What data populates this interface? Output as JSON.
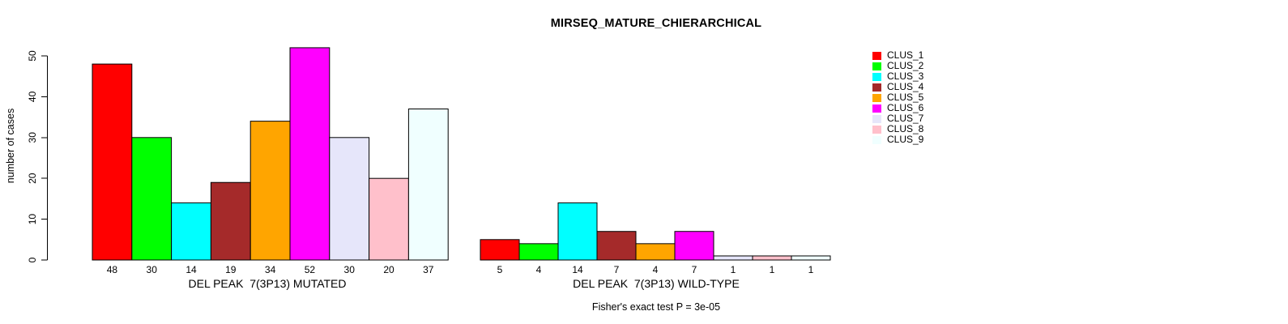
{
  "chart_data": {
    "type": "bar",
    "title": "MIRSEQ_MATURE_CHIERARCHICAL",
    "ylabel": "number of cases",
    "ylim": [
      0,
      52
    ],
    "yticks": [
      0,
      10,
      20,
      30,
      40,
      50
    ],
    "grid": false,
    "legend_position": "right",
    "clusters": [
      "CLUS_1",
      "CLUS_2",
      "CLUS_3",
      "CLUS_4",
      "CLUS_5",
      "CLUS_6",
      "CLUS_7",
      "CLUS_8",
      "CLUS_9"
    ],
    "colors": [
      "#FF0000",
      "#00FF00",
      "#00FFFF",
      "#A52A2A",
      "#FFA500",
      "#FF00FF",
      "#E6E6FA",
      "#FFC0CB",
      "#F0FFFF"
    ],
    "groups": [
      {
        "xlabel": "DEL PEAK  7(3P13) MUTATED",
        "categories": [
          "CLUS_1",
          "CLUS_2",
          "CLUS_3",
          "CLUS_4",
          "CLUS_5",
          "CLUS_6",
          "CLUS_7",
          "CLUS_8",
          "CLUS_9"
        ],
        "values": [
          48,
          30,
          14,
          19,
          34,
          52,
          30,
          20,
          37
        ]
      },
      {
        "xlabel": "DEL PEAK  7(3P13) WILD-TYPE",
        "categories": [
          "CLUS_1",
          "CLUS_2",
          "CLUS_3",
          "CLUS_4",
          "CLUS_5",
          "CLUS_6",
          "CLUS_7",
          "CLUS_8",
          "CLUS_9"
        ],
        "values": [
          5,
          4,
          14,
          7,
          4,
          7,
          1,
          1,
          1
        ]
      }
    ],
    "annotation": "Fisher's exact test P = 3e-05"
  }
}
